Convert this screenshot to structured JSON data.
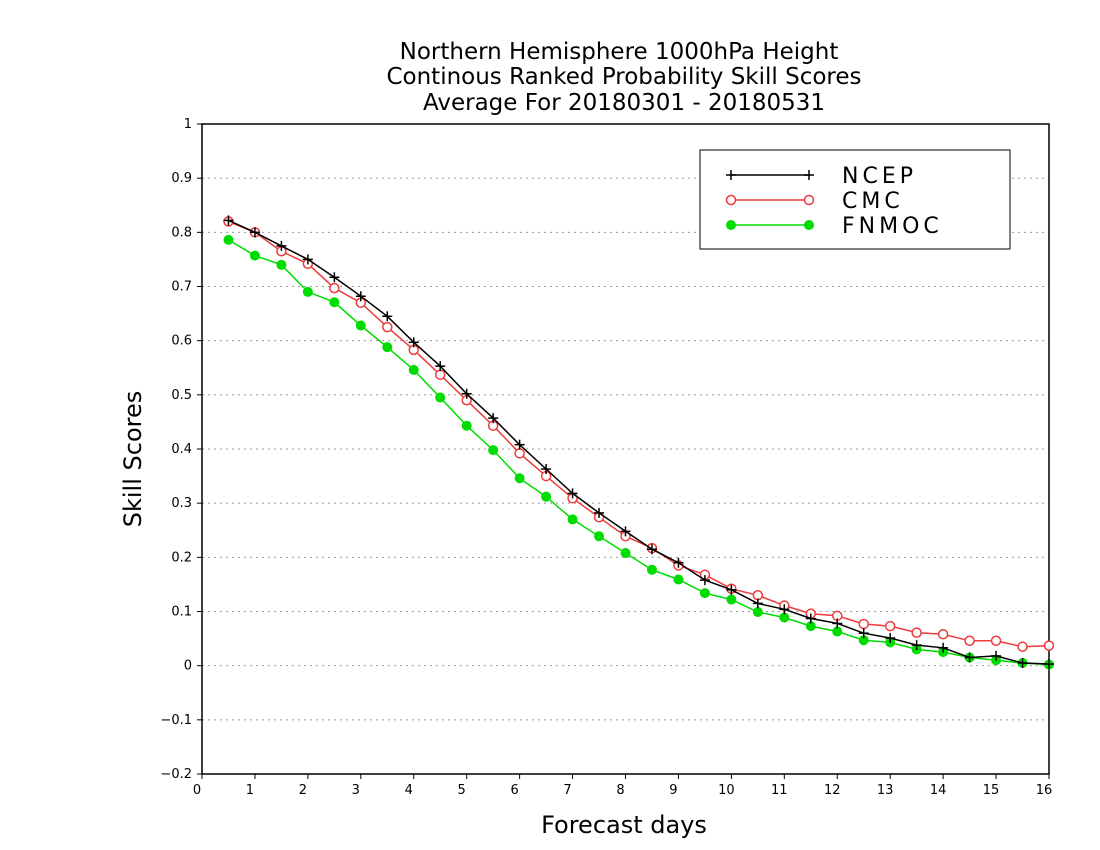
{
  "chart_data": {
    "type": "line",
    "title": [
      "Northern Hemisphere 1000hPa Height",
      "Continous Ranked Probability Skill Scores",
      "Average For 20180301 - 20180531"
    ],
    "xlabel": "Forecast days",
    "ylabel": "Skill Scores",
    "xlim": [
      0,
      16
    ],
    "ylim": [
      -0.2,
      1
    ],
    "xticks": [
      0,
      1,
      2,
      3,
      4,
      5,
      6,
      7,
      8,
      9,
      10,
      11,
      12,
      13,
      14,
      15,
      16
    ],
    "yticks": [
      -0.2,
      -0.1,
      0,
      0.1,
      0.2,
      0.3,
      0.4,
      0.5,
      0.6,
      0.7,
      0.8,
      0.9,
      1
    ],
    "ytick_labels": [
      "−0.2",
      "−0.1",
      "0",
      "0.1",
      "0.2",
      "0.3",
      "0.4",
      "0.5",
      "0.6",
      "0.7",
      "0.8",
      "0.9",
      "1"
    ],
    "grid": "horizontal dotted",
    "legend_position": "top-right",
    "x": [
      0.5,
      1,
      1.5,
      2,
      2.5,
      3,
      3.5,
      4,
      4.5,
      5,
      5.5,
      6,
      6.5,
      7,
      7.5,
      8,
      8.5,
      9,
      9.5,
      10,
      10.5,
      11,
      11.5,
      12,
      12.5,
      13,
      13.5,
      14,
      14.5,
      15,
      15.5,
      16
    ],
    "series": [
      {
        "name": "NCEP",
        "color": "#000000",
        "marker": "plus",
        "values": [
          0.822,
          0.8,
          0.775,
          0.75,
          0.717,
          0.682,
          0.645,
          0.597,
          0.553,
          0.502,
          0.457,
          0.408,
          0.363,
          0.318,
          0.282,
          0.248,
          0.215,
          0.19,
          0.158,
          0.14,
          0.115,
          0.104,
          0.087,
          0.078,
          0.06,
          0.051,
          0.038,
          0.033,
          0.015,
          0.018,
          0.005,
          0.003
        ]
      },
      {
        "name": "CMC",
        "color": "#ee3b3b",
        "marker": "open-circle",
        "values": [
          0.82,
          0.8,
          0.765,
          0.742,
          0.697,
          0.67,
          0.625,
          0.583,
          0.537,
          0.49,
          0.443,
          0.392,
          0.35,
          0.309,
          0.274,
          0.239,
          0.217,
          0.185,
          0.168,
          0.142,
          0.13,
          0.111,
          0.096,
          0.092,
          0.077,
          0.073,
          0.061,
          0.058,
          0.046,
          0.046,
          0.035,
          0.037
        ]
      },
      {
        "name": "FNMOC",
        "color": "#00dc00",
        "marker": "filled-circle",
        "values": [
          0.786,
          0.757,
          0.74,
          0.69,
          0.671,
          0.628,
          0.588,
          0.546,
          0.495,
          0.443,
          0.398,
          0.346,
          0.312,
          0.27,
          0.239,
          0.208,
          0.177,
          0.159,
          0.134,
          0.122,
          0.099,
          0.089,
          0.073,
          0.063,
          0.047,
          0.043,
          0.03,
          0.025,
          0.015,
          0.01,
          0.005,
          0.002
        ]
      }
    ]
  }
}
